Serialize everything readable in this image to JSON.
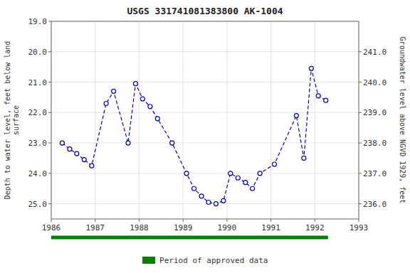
{
  "chart_data": {
    "type": "line",
    "title": "USGS 331741081383800 AK-1004",
    "ylabel": "Depth to water level, feet below land\nsurface",
    "y2label": "Groundwater level above NGVD 1929, feet",
    "x": [
      1986.25,
      1986.42,
      1986.58,
      1986.75,
      1986.92,
      1987.25,
      1987.42,
      1987.75,
      1987.92,
      1988.08,
      1988.25,
      1988.42,
      1988.75,
      1989.08,
      1989.25,
      1989.42,
      1989.58,
      1989.75,
      1989.92,
      1990.08,
      1990.25,
      1990.42,
      1990.58,
      1990.75,
      1991.08,
      1991.58,
      1991.75,
      1991.92,
      1992.08,
      1992.25
    ],
    "series": [
      {
        "color": "#0000bb",
        "marker": "circle",
        "line_style": "dashed",
        "values": [
          23.0,
          23.2,
          23.35,
          23.55,
          23.75,
          21.7,
          21.3,
          23.0,
          21.05,
          21.55,
          21.8,
          22.2,
          23.0,
          24.0,
          24.5,
          24.75,
          24.95,
          25.0,
          24.9,
          24.0,
          24.15,
          24.3,
          24.5,
          24.0,
          23.7,
          22.1,
          23.5,
          20.55,
          21.45,
          21.6
        ]
      }
    ],
    "xlim": [
      1986.0,
      1993.0
    ],
    "xticks": [
      1986,
      1987,
      1988,
      1989,
      1990,
      1991,
      1992,
      1993
    ],
    "ylim": [
      25.5,
      19.0
    ],
    "yticks": [
      {
        "value": 19.0,
        "label": "19.0"
      },
      {
        "value": 20.0,
        "label": "20.0"
      },
      {
        "value": 21.0,
        "label": "21.0"
      },
      {
        "value": 22.0,
        "label": "22.0"
      },
      {
        "value": 23.0,
        "label": "23.0"
      },
      {
        "value": 24.0,
        "label": "24.0"
      },
      {
        "value": 25.0,
        "label": "25.0"
      }
    ],
    "y2lim": [
      235.5,
      242.0
    ],
    "y2ticks": [
      {
        "value": 236.0,
        "label": "236.0"
      },
      {
        "value": 237.0,
        "label": "237.0"
      },
      {
        "value": 238.0,
        "label": "238.0"
      },
      {
        "value": 239.0,
        "label": "239.0"
      },
      {
        "value": 240.0,
        "label": "240.0"
      },
      {
        "value": 241.0,
        "label": "241.0"
      }
    ],
    "approved_period": {
      "name": "Period of approved data",
      "color": "#008000",
      "start": 1986.0,
      "end": 1992.3
    },
    "grid": true,
    "legend": "bottom"
  }
}
